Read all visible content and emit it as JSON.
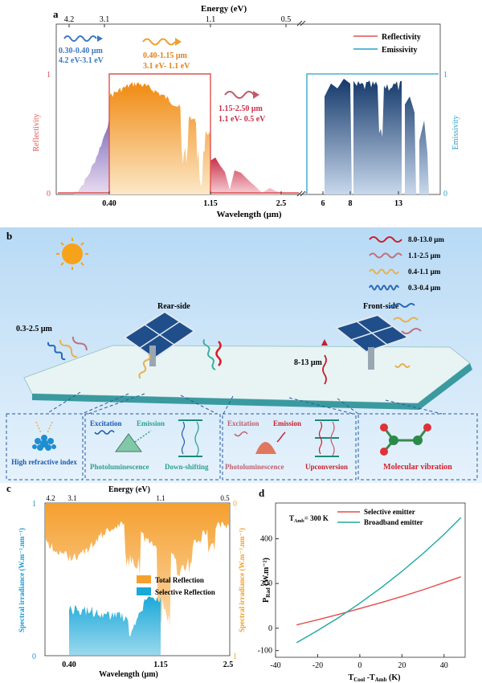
{
  "panel_a": {
    "label": "a",
    "top_axis_title": "Energy (eV)",
    "top_ticks": [
      "4.2",
      "3.1",
      "1.1",
      "0.5"
    ],
    "bottom_ticks": [
      "0.40",
      "1.15",
      "2.5",
      "6",
      "8",
      "13"
    ],
    "xlabel": "Wavelength (μm)",
    "ylabel_left": "Reflectivity",
    "ylabel_right": "Emissivity",
    "left_ticks": [
      "1",
      "0"
    ],
    "right_ticks": [
      "1",
      "0"
    ],
    "legend": [
      "Reflectivity",
      "Emissivity"
    ],
    "ann_uv_range": "0.30-0.40 μm",
    "ann_uv_energy": "4.2 eV-3.1 eV",
    "ann_vis_range": "0.40-1.15 μm",
    "ann_vis_energy": "3.1 eV- 1.1 eV",
    "ann_nir_range": "1.15-2.50 μm",
    "ann_nir_energy": "1.1 eV- 0.5 eV",
    "colors": {
      "uv": "#3a78c2",
      "vis": "#f0a030",
      "nir": "#d44a5a",
      "emis": "#1b4a80",
      "refl_line": "#e05050",
      "emis_line": "#2aa0c8"
    }
  },
  "panel_b": {
    "label": "b",
    "legend": [
      "8.0-13.0 μm",
      "1.1-2.5 μm",
      "0.4-1.1 μm",
      "0.3-0.4 μm"
    ],
    "rear_side": "Rear-side",
    "front_side": "Front-side",
    "incoming": "0.3-2.5 μm",
    "emitted": "8-13 μm",
    "box1_label": "High refractive index",
    "box2_excitation": "Excitation",
    "box2_emission": "Emission",
    "box2_photo": "Photoluminescence",
    "box2_down": "Down-shifting",
    "box3_excitation": "Excitation",
    "box3_emission": "Emission",
    "box3_photo": "Photoluminescence",
    "box3_up": "Upconversion",
    "box4_label": "Molecular vibration"
  },
  "panel_c": {
    "label": "c",
    "top_axis_title": "Energy (eV)",
    "top_ticks": [
      "4.2",
      "3.1",
      "1.1",
      "0.5"
    ],
    "bottom_ticks": [
      "0.40",
      "1.15",
      "2.5"
    ],
    "xlabel": "Wavelength (μm)",
    "ylabel_left": "Spectral irradiance (W.m⁻².nm⁻¹)",
    "ylabel_right": "Spectral irradiance (W.m⁻².nm⁻¹)",
    "left_ticks": [
      "1",
      "0"
    ],
    "right_ticks": [
      "0",
      "1"
    ],
    "legend": [
      "Total Reflection",
      "Selective Reflection"
    ]
  },
  "panel_d": {
    "label": "d",
    "chart_data": {
      "type": "line",
      "annotation": "T",
      "annotation_sub": "Amb",
      "annotation_rest": "= 300 K",
      "xlabel_main": "T",
      "xlabel_sub1": "Cool",
      "xlabel_mid": " -T",
      "xlabel_sub2": "Amb",
      "xlabel_unit": " (K)",
      "ylabel_main": "P",
      "ylabel_sub": "Rad",
      "ylabel_unit": " (W.m⁻²)",
      "xlim": [
        -40,
        50
      ],
      "ylim": [
        -130,
        560
      ],
      "xticks": [
        -40,
        -20,
        0,
        20,
        40
      ],
      "yticks": [
        -100,
        0,
        200,
        400
      ],
      "series": [
        {
          "name": "Selective emitter",
          "color": "#e84a4a",
          "x": [
            -30,
            -20,
            -10,
            0,
            10,
            20,
            30,
            40,
            48
          ],
          "y": [
            15,
            38,
            62,
            88,
            114,
            142,
            172,
            204,
            230
          ]
        },
        {
          "name": "Broadband emitter",
          "color": "#20a8a0",
          "x": [
            -30,
            -20,
            -10,
            0,
            10,
            20,
            30,
            40,
            48
          ],
          "y": [
            -65,
            -10,
            48,
            112,
            180,
            254,
            334,
            420,
            495
          ]
        }
      ]
    }
  }
}
